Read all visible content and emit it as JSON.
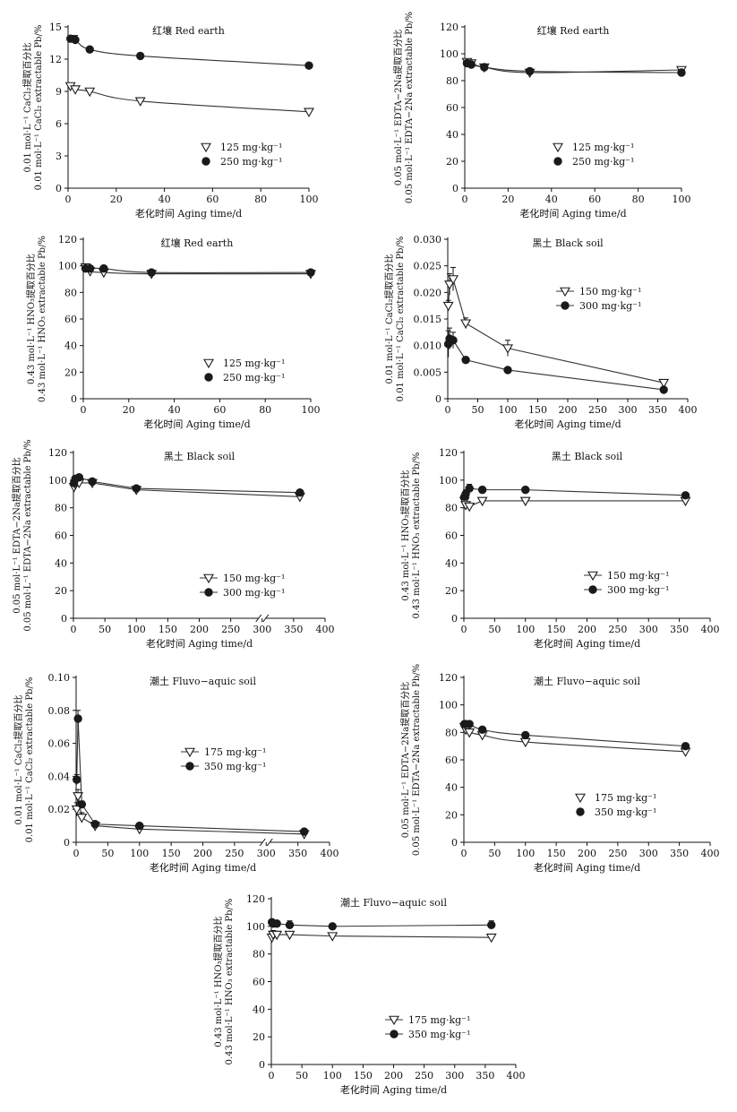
{
  "chart_data": [
    {
      "id": "p1",
      "type": "scatter",
      "title": "红壤 Red earth",
      "xlabel": "老化时间 Aging time/d",
      "ylabel": [
        "0.01 mol·L⁻¹ CaCl₂提取百分比",
        "0.01 mol·L⁻¹ CaCl₂ extractable Pb/%"
      ],
      "xlim": [
        0,
        100
      ],
      "ylim": [
        0,
        15
      ],
      "xticks": [
        "0",
        "20",
        "40",
        "60",
        "80",
        "100"
      ],
      "yticks": [
        "0",
        "3",
        "6",
        "9",
        "12",
        "15"
      ],
      "legend_position": "lower-right",
      "series": [
        {
          "name": "125 mg·kg⁻¹",
          "marker": "triangle",
          "x": [
            1,
            3,
            9,
            30,
            100
          ],
          "y": [
            9.5,
            9.2,
            9.0,
            8.1,
            7.1
          ],
          "err": [
            0.2,
            0.3,
            0.2,
            0.2,
            0.2
          ]
        },
        {
          "name": "250 mg·kg⁻¹",
          "marker": "circle",
          "x": [
            1,
            3,
            9,
            30,
            100
          ],
          "y": [
            13.9,
            13.8,
            12.9,
            12.3,
            11.4
          ],
          "err": [
            0.3,
            0.4,
            0.2,
            0.2,
            0.2
          ]
        }
      ]
    },
    {
      "id": "p2",
      "type": "scatter",
      "title": "红壤 Red earth",
      "xlabel": "老化时间 Aging time/d",
      "ylabel": [
        "0.05 mol·L⁻¹ EDTA−2Na提取百分比",
        "0.05 mol·L⁻¹ EDTA−2Na extractable Pb/%"
      ],
      "xlim": [
        0,
        100
      ],
      "ylim": [
        0,
        120
      ],
      "xticks": [
        "0",
        "20",
        "40",
        "60",
        "80",
        "100"
      ],
      "yticks": [
        "0",
        "20",
        "40",
        "60",
        "80",
        "100",
        "120"
      ],
      "legend_position": "lower-right",
      "series": [
        {
          "name": "125 mg·kg⁻¹",
          "marker": "triangle",
          "x": [
            1,
            3,
            9,
            30,
            100
          ],
          "y": [
            94,
            93,
            90,
            86,
            88
          ],
          "err": [
            2,
            2,
            2,
            1,
            1
          ]
        },
        {
          "name": "250 mg·kg⁻¹",
          "marker": "circle",
          "x": [
            1,
            3,
            9,
            30,
            100
          ],
          "y": [
            93,
            92,
            90,
            87,
            86
          ],
          "err": [
            2,
            2,
            1,
            1,
            1
          ]
        }
      ]
    },
    {
      "id": "p3",
      "type": "scatter",
      "title": "红壤 Red earth",
      "xlabel": "老化时间 Aging time/d",
      "ylabel": [
        "0.43 mol·L⁻¹ HNO₃提取百分比",
        "0.43 mol·L⁻¹ HNO₃ extractable Pb/%"
      ],
      "xlim": [
        0,
        100
      ],
      "ylim": [
        0,
        120
      ],
      "xticks": [
        "0",
        "20",
        "40",
        "60",
        "80",
        "100"
      ],
      "yticks": [
        "0",
        "20",
        "40",
        "60",
        "80",
        "100",
        "120"
      ],
      "legend_position": "lower-right",
      "series": [
        {
          "name": "125 mg·kg⁻¹",
          "marker": "triangle",
          "x": [
            1,
            3,
            9,
            30,
            100
          ],
          "y": [
            99,
            96,
            95,
            94,
            94
          ],
          "err": [
            2,
            2,
            3,
            2,
            2
          ]
        },
        {
          "name": "250 mg·kg⁻¹",
          "marker": "circle",
          "x": [
            1,
            3,
            9,
            30,
            100
          ],
          "y": [
            98,
            98,
            98,
            95,
            95
          ],
          "err": [
            2,
            2,
            2,
            1,
            1
          ]
        }
      ]
    },
    {
      "id": "p4",
      "type": "line",
      "title": "黑土 Black soil",
      "xlabel": "老化时间 Aging time/d",
      "ylabel": [
        "0.01 mol·L⁻¹ CaCl₂提取百分比",
        "0.01 mol·L⁻¹ CaCl₂ extractable Pb/%"
      ],
      "xlim": [
        0,
        400
      ],
      "ylim": [
        0,
        0.03
      ],
      "xticks": [
        "0",
        "50",
        "100",
        "150",
        "200",
        "250",
        "300",
        "350",
        "400"
      ],
      "yticks": [
        "0",
        "0.005",
        "0.010",
        "0.015",
        "0.020",
        "0.025",
        "0.030"
      ],
      "legend_position": "upper-right",
      "series": [
        {
          "name": "150 mg·kg⁻¹",
          "marker": "triangle",
          "x": [
            1,
            3,
            9,
            30,
            100,
            360
          ],
          "y": [
            0.0175,
            0.0215,
            0.0225,
            0.0142,
            0.0095,
            0.003
          ],
          "err": [
            0.001,
            0.002,
            0.0022,
            0.001,
            0.0015,
            0.0005
          ]
        },
        {
          "name": "300 mg·kg⁻¹",
          "marker": "circle",
          "x": [
            1,
            3,
            9,
            30,
            100,
            360
          ],
          "y": [
            0.0103,
            0.0113,
            0.011,
            0.0073,
            0.0054,
            0.0017
          ],
          "err": [
            0.0025,
            0.002,
            0.0015,
            0.0005,
            0.0005,
            0.0003
          ]
        }
      ]
    },
    {
      "id": "p5",
      "type": "line",
      "title": "黑土 Black soil",
      "xlabel": "老化时间 Aging time/d",
      "ylabel": [
        "0.05 mol·L⁻¹ EDTA−2Na提取百分比",
        "0.05 mol·L⁻¹ EDTA−2Na extractable Pb/%"
      ],
      "xlim": [
        0,
        400
      ],
      "ylim": [
        0,
        120
      ],
      "xticks": [
        "0",
        "50",
        "100",
        "150",
        "200",
        "250",
        "300",
        "350",
        "400"
      ],
      "yticks": [
        "0",
        "20",
        "40",
        "60",
        "80",
        "100",
        "120"
      ],
      "legend_position": "lower-right",
      "series": [
        {
          "name": "150 mg·kg⁻¹",
          "marker": "triangle",
          "x": [
            1,
            3,
            9,
            30,
            100,
            360
          ],
          "y": [
            95,
            97,
            98,
            98,
            93,
            88
          ],
          "err": [
            2,
            2,
            2,
            1,
            1,
            1
          ]
        },
        {
          "name": "300 mg·kg⁻¹",
          "marker": "circle",
          "x": [
            1,
            3,
            9,
            30,
            100,
            360
          ],
          "y": [
            98,
            101,
            102,
            99,
            94,
            91
          ],
          "err": [
            2,
            2,
            2,
            1,
            1,
            1
          ]
        }
      ]
    },
    {
      "id": "p6",
      "type": "line",
      "title": "黑土 Black soil",
      "xlabel": "老化时间 Aging time/d",
      "ylabel": [
        "0.43 mol·L⁻¹ HNO₃提取百分比",
        "0.43 mol·L⁻¹ HNO₃ extractable Pb/%"
      ],
      "xlim": [
        0,
        400
      ],
      "ylim": [
        0,
        120
      ],
      "xticks": [
        "0",
        "50",
        "100",
        "150",
        "200",
        "250",
        "300",
        "350",
        "400"
      ],
      "yticks": [
        "0",
        "20",
        "40",
        "60",
        "80",
        "100",
        "120"
      ],
      "legend_position": "lower-right",
      "series": [
        {
          "name": "150 mg·kg⁻¹",
          "marker": "triangle",
          "x": [
            1,
            3,
            9,
            30,
            100,
            360
          ],
          "y": [
            85,
            82,
            81,
            85,
            85,
            85
          ],
          "err": [
            2,
            2,
            2,
            2,
            2,
            1
          ]
        },
        {
          "name": "300 mg·kg⁻¹",
          "marker": "circle",
          "x": [
            1,
            3,
            9,
            30,
            100,
            360
          ],
          "y": [
            88,
            90,
            94,
            93,
            93,
            89
          ],
          "err": [
            2,
            3,
            3,
            1,
            1,
            1
          ]
        }
      ]
    },
    {
      "id": "p7",
      "type": "line",
      "title": "潮土 Fluvo−aquic soil",
      "xlabel": "老化时间 Aging time/d",
      "ylabel": [
        "0.01 mol·L⁻¹ CaCl₂提取百分比",
        "0.01 mol·L⁻¹ CaCl₂ extractable Pb/%"
      ],
      "xlim": [
        0,
        400
      ],
      "ylim": [
        0,
        0.1
      ],
      "xticks": [
        "0",
        "50",
        "100",
        "150",
        "200",
        "250",
        "300",
        "350",
        "400"
      ],
      "yticks": [
        "0",
        "0.02",
        "0.04",
        "0.06",
        "0.08",
        "0.10"
      ],
      "legend_position": "upper-right",
      "series": [
        {
          "name": "175 mg·kg⁻¹",
          "marker": "triangle",
          "x": [
            1,
            3,
            9,
            30,
            100,
            360
          ],
          "y": [
            0.02,
            0.028,
            0.015,
            0.01,
            0.008,
            0.005
          ],
          "err": [
            0.004,
            0.004,
            0.003,
            0.001,
            0.001,
            0.001
          ]
        },
        {
          "name": "350 mg·kg⁻¹",
          "marker": "circle",
          "x": [
            1,
            3,
            9,
            30,
            100,
            360
          ],
          "y": [
            0.038,
            0.075,
            0.023,
            0.011,
            0.01,
            0.0065
          ],
          "err": [
            0.003,
            0.005,
            0.002,
            0.001,
            0.001,
            0.001
          ]
        }
      ]
    },
    {
      "id": "p8",
      "type": "scatter",
      "title": "潮土 Fluvo−aquic soil",
      "xlabel": "老化时间 Aging time/d",
      "ylabel": [
        "0.05 mol·L⁻¹ EDTA−2Na提取百分比",
        "0.05 mol·L⁻¹ EDTA−2Na extractable Pb/%"
      ],
      "xlim": [
        0,
        400
      ],
      "ylim": [
        0,
        120
      ],
      "xticks": [
        "0",
        "50",
        "100",
        "150",
        "200",
        "250",
        "300",
        "350",
        "400"
      ],
      "yticks": [
        "0",
        "20",
        "40",
        "60",
        "80",
        "100",
        "120"
      ],
      "legend_position": "lower-right",
      "series": [
        {
          "name": "175 mg·kg⁻¹",
          "marker": "triangle",
          "x": [
            1,
            3,
            9,
            30,
            100,
            360
          ],
          "y": [
            84,
            82,
            80,
            78,
            73,
            66
          ],
          "err": [
            2,
            2,
            1,
            1,
            1,
            1
          ]
        },
        {
          "name": "350 mg·kg⁻¹",
          "marker": "circle",
          "x": [
            1,
            3,
            9,
            30,
            100,
            360
          ],
          "y": [
            86,
            86,
            86,
            82,
            78,
            70
          ],
          "err": [
            1,
            1,
            1,
            1,
            1,
            1
          ]
        }
      ]
    },
    {
      "id": "p9",
      "type": "line",
      "title": "潮土 Fluvo−aquic soil",
      "xlabel": "老化时间 Aging time/d",
      "ylabel": [
        "0.43 mol·L⁻¹ HNO₃提取百分比",
        "0.43 mol·L⁻¹ HNO₃ extractable Pb/%"
      ],
      "xlim": [
        0,
        400
      ],
      "ylim": [
        0,
        120
      ],
      "xticks": [
        "0",
        "50",
        "100",
        "150",
        "200",
        "250",
        "300",
        "350",
        "400"
      ],
      "yticks": [
        "0",
        "20",
        "40",
        "60",
        "80",
        "100",
        "120"
      ],
      "legend_position": "lower-right",
      "series": [
        {
          "name": "175 mg·kg⁻¹",
          "marker": "triangle",
          "x": [
            1,
            3,
            9,
            30,
            100,
            360
          ],
          "y": [
            92,
            94,
            94,
            94,
            93,
            92
          ],
          "err": [
            3,
            3,
            2,
            2,
            1,
            1
          ]
        },
        {
          "name": "350 mg·kg⁻¹",
          "marker": "circle",
          "x": [
            1,
            3,
            9,
            30,
            100,
            360
          ],
          "y": [
            103,
            102,
            102,
            101,
            100,
            101
          ],
          "err": [
            2,
            2,
            2,
            3,
            1,
            3
          ]
        }
      ]
    }
  ]
}
